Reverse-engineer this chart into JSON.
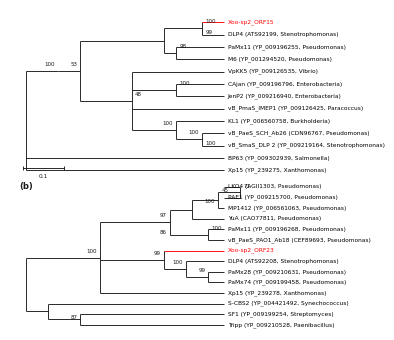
{
  "background_color": "#ffffff",
  "panel_a": {
    "taxa": [
      {
        "label": "Xoo-sp2_ORF15",
        "color": "#ff0000",
        "y": 1
      },
      {
        "label": "DLP4 (ATS92199, Stenotrophomonas)",
        "color": "#000000",
        "y": 2
      },
      {
        "label": "PaMx11 (YP_009196255, Pseudomonas)",
        "color": "#000000",
        "y": 3
      },
      {
        "label": "M6 (YP_001294520, Pseudomonas)",
        "color": "#000000",
        "y": 4
      },
      {
        "label": "VpKK5 (YP_009126535, Vibrio)",
        "color": "#000000",
        "y": 5
      },
      {
        "label": "CAjan (YP_009196796, Enterobacteria)",
        "color": "#000000",
        "y": 6
      },
      {
        "label": "JenP2 (YP_009216940, Enterobacteria)",
        "color": "#000000",
        "y": 7
      },
      {
        "label": "vB_PmaS_IMEP1 (YP_009126425, Paracoccus)",
        "color": "#000000",
        "y": 8
      },
      {
        "label": "KL1 (YP_006560758, Burkholderia)",
        "color": "#000000",
        "y": 9
      },
      {
        "label": "vB_PaeS_SCH_Ab26 (CDN96767, Pseudomonas)",
        "color": "#000000",
        "y": 10
      },
      {
        "label": "vB_SmaS_DLP 2 (YP_009219164, Stenotrophomonas)",
        "color": "#000000",
        "y": 11
      },
      {
        "label": "BP63 (YP_009302939, Salmonella)",
        "color": "#000000",
        "y": 12
      },
      {
        "label": "Xp15 (YP_239275, Xanthomonas)",
        "color": "#000000",
        "y": 13
      }
    ]
  },
  "panel_b": {
    "taxa": [
      {
        "label": "LKO4 (AGII1303, Pseudomonas)",
        "color": "#000000",
        "y": 1
      },
      {
        "label": "PAE1 (YP_009215700, Pseudomonas)",
        "color": "#000000",
        "y": 2
      },
      {
        "label": "MP1412 (YP_006561063, Pseudomonas)",
        "color": "#000000",
        "y": 3
      },
      {
        "label": "YuA (CAO77811, Pseudomonas)",
        "color": "#000000",
        "y": 4
      },
      {
        "label": "PaMx11 (YP_009196268, Pseudomonas)",
        "color": "#000000",
        "y": 5
      },
      {
        "label": "vB_PaeS_PAO1_Ab18 (CEF89693, Pseudomonas)",
        "color": "#000000",
        "y": 6
      },
      {
        "label": "Xoo-sp2_ORF23",
        "color": "#ff0000",
        "y": 7
      },
      {
        "label": "DLP4 (ATS92208, Stenotrophomonas)",
        "color": "#000000",
        "y": 8
      },
      {
        "label": "PaMx28 (YP_009210631, Pseudomonas)",
        "color": "#000000",
        "y": 9
      },
      {
        "label": "PaMx74 (YP_009199458, Pseudomonas)",
        "color": "#000000",
        "y": 10
      },
      {
        "label": "Xp15 (YP_239278, Xanthomonas)",
        "color": "#000000",
        "y": 11
      },
      {
        "label": "S-CBS2 (YP_004421492, Synechococcus)",
        "color": "#000000",
        "y": 12
      },
      {
        "label": "SF1 (YP_009199254, Streptomyces)",
        "color": "#000000",
        "y": 13
      },
      {
        "label": "Tripp (YP_009210528, Paenibacillus)",
        "color": "#000000",
        "y": 14
      }
    ]
  },
  "font_size_label": 4.2,
  "font_size_bootstrap": 4.0,
  "line_width": 0.65,
  "line_color": "#1a1a1a"
}
